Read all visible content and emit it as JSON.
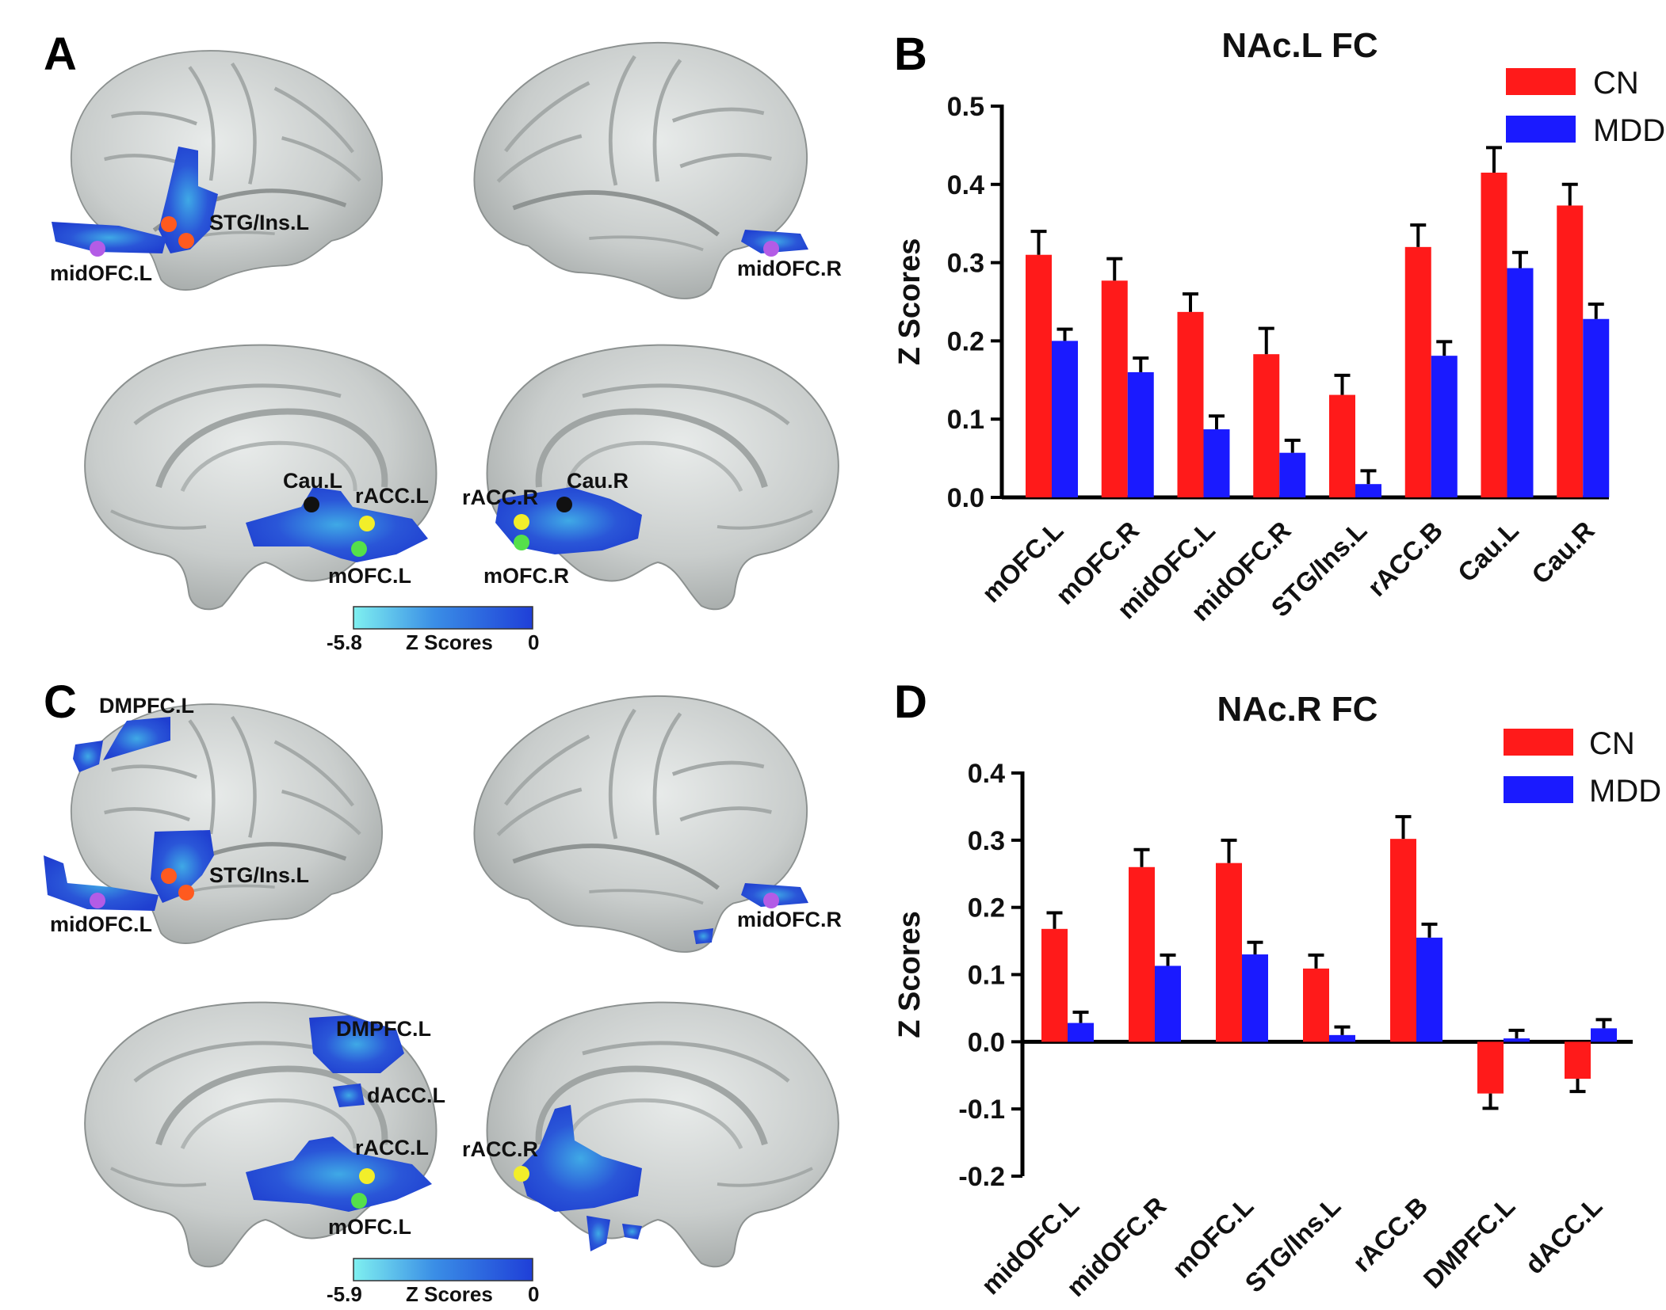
{
  "panels": {
    "A": {
      "letter": "A",
      "colorbar": {
        "min": "-5.8",
        "max": "0",
        "label": "Z Scores"
      },
      "labels": {
        "stg_l": "STG/Ins.L",
        "midofc_l": "midOFC.L",
        "midofc_r": "midOFC.R",
        "cau_l": "Cau.L",
        "racc_l": "rACC.L",
        "mofc_l": "mOFC.L",
        "racc_r": "rACC.R",
        "cau_r": "Cau.R",
        "mofc_r": "mOFC.R"
      }
    },
    "B": {
      "letter": "B"
    },
    "C": {
      "letter": "C",
      "colorbar": {
        "min": "-5.9",
        "max": "0",
        "label": "Z Scores"
      },
      "labels": {
        "dmpfc_l_top": "DMPFC.L",
        "stg_l": "STG/Ins.L",
        "midofc_l": "midOFC.L",
        "midofc_r": "midOFC.R",
        "dmpfc_l_med": "DMPFC.L",
        "dacc_l": "dACC.L",
        "racc_l": "rACC.L",
        "mofc_l": "mOFC.L",
        "racc_r": "rACC.R"
      }
    },
    "D": {
      "letter": "D"
    }
  },
  "colors": {
    "cn": "#ff1a1a",
    "mdd": "#1a1aff",
    "dot_orange": "#ff5a1f",
    "dot_purple": "#b35ce6",
    "dot_black": "#111111",
    "dot_yellow": "#f2ee2a",
    "dot_green": "#55e04a"
  },
  "chart_data": [
    {
      "type": "bar",
      "title": "NAc.L FC",
      "ylabel": "Z Scores",
      "xlabel": "",
      "ylim": [
        0.0,
        0.5
      ],
      "yticks": [
        "0.0",
        "0.1",
        "0.2",
        "0.3",
        "0.4",
        "0.5"
      ],
      "categories": [
        "mOFC.L",
        "mOFC.R",
        "midOFC.L",
        "midOFC.R",
        "STG/Ins.L",
        "rACC.B",
        "Cau.L",
        "Cau.R"
      ],
      "series": [
        {
          "name": "CN",
          "values": [
            0.31,
            0.277,
            0.237,
            0.183,
            0.131,
            0.32,
            0.415,
            0.373
          ],
          "errors": [
            0.03,
            0.028,
            0.023,
            0.033,
            0.025,
            0.028,
            0.032,
            0.027
          ]
        },
        {
          "name": "MDD",
          "values": [
            0.2,
            0.16,
            0.087,
            0.057,
            0.017,
            0.181,
            0.293,
            0.228
          ],
          "errors": [
            0.015,
            0.018,
            0.017,
            0.016,
            0.017,
            0.018,
            0.02,
            0.019
          ]
        }
      ],
      "legend": "top-right"
    },
    {
      "type": "bar",
      "title": "NAc.R FC",
      "ylabel": "Z Scores",
      "xlabel": "",
      "ylim": [
        -0.2,
        0.4
      ],
      "yticks": [
        "-0.2",
        "-0.1",
        "0.0",
        "0.1",
        "0.2",
        "0.3",
        "0.4"
      ],
      "categories": [
        "midOFC.L",
        "midOFC.R",
        "mOFC.L",
        "STG/Ins.L",
        "rACC.B",
        "DMPFC.L",
        "dACC.L"
      ],
      "series": [
        {
          "name": "CN",
          "values": [
            0.168,
            0.26,
            0.266,
            0.109,
            0.302,
            -0.077,
            -0.055
          ],
          "errors": [
            0.024,
            0.026,
            0.034,
            0.02,
            0.033,
            0.022,
            0.019
          ]
        },
        {
          "name": "MDD",
          "values": [
            0.028,
            0.113,
            0.13,
            0.01,
            0.155,
            0.005,
            0.02
          ],
          "errors": [
            0.016,
            0.016,
            0.018,
            0.012,
            0.02,
            0.012,
            0.013
          ]
        }
      ],
      "legend": "top-right"
    }
  ]
}
